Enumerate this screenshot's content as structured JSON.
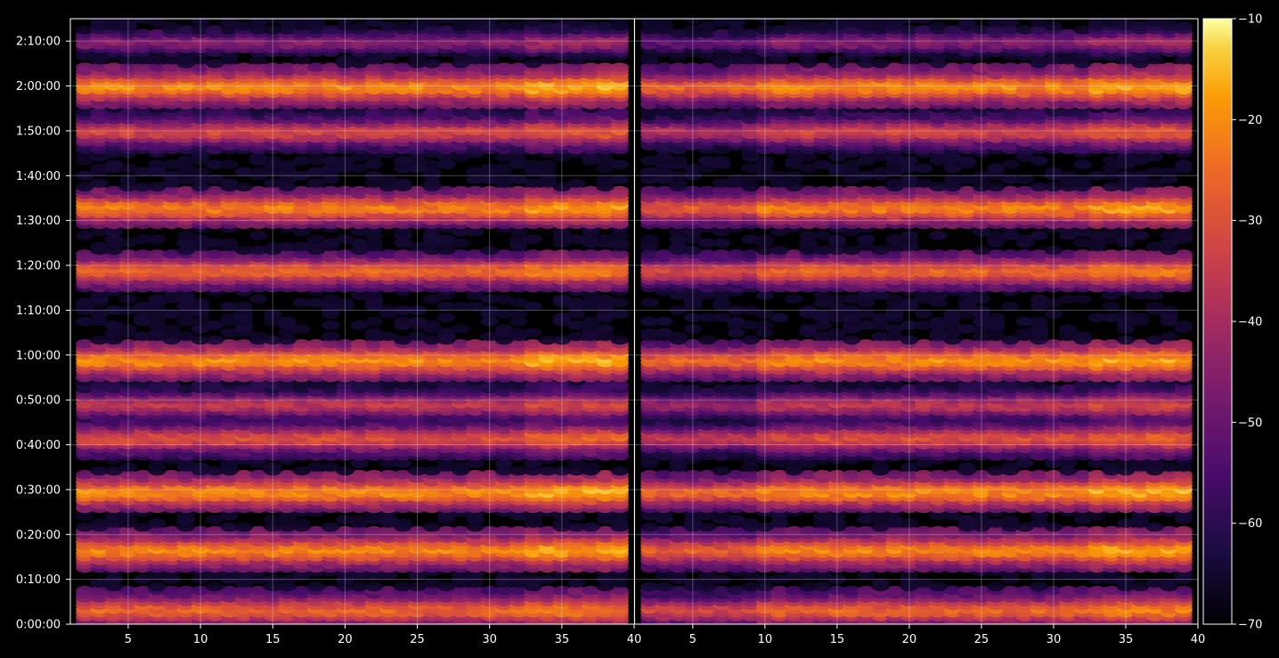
{
  "chart_data": {
    "type": "heatmap",
    "title": "",
    "xlabel": "",
    "ylabel": "",
    "grid": true,
    "panels": [
      {
        "name": "left",
        "xlim": [
          1,
          40
        ],
        "xticks": [
          5,
          10,
          15,
          20,
          25,
          30,
          35,
          40
        ],
        "xtick_labels": [
          "5",
          "10",
          "15",
          "20",
          "25",
          "30",
          "35",
          "40"
        ]
      },
      {
        "name": "right",
        "xlim": [
          1,
          40
        ],
        "xticks": [
          5,
          10,
          15,
          20,
          25,
          30,
          35,
          40
        ],
        "xtick_labels": [
          "5",
          "10",
          "15",
          "20",
          "25",
          "30",
          "35",
          "40"
        ]
      }
    ],
    "x_values": [
      2,
      3,
      4,
      5,
      6,
      7,
      8,
      9,
      10,
      11,
      12,
      13,
      14,
      15,
      16,
      17,
      18,
      19,
      20,
      21,
      22,
      23,
      24,
      25,
      26,
      27,
      28,
      29,
      30,
      31,
      32,
      33,
      34,
      35,
      36,
      37,
      38,
      39
    ],
    "y_unit": "time (h:mm:ss)",
    "ylim_seconds": [
      0,
      8100
    ],
    "yticks_seconds": [
      0,
      600,
      1200,
      1800,
      2400,
      3000,
      3600,
      4200,
      4800,
      5400,
      6000,
      6600,
      7200,
      7800
    ],
    "ytick_labels": [
      "0:00:00",
      "0:10:00",
      "0:20:00",
      "0:30:00",
      "0:40:00",
      "0:50:00",
      "1:00:00",
      "1:10:00",
      "1:20:00",
      "1:30:00",
      "1:40:00",
      "1:50:00",
      "2:00:00",
      "2:10:00"
    ],
    "bands": [
      {
        "t": 7800,
        "level": -45
      },
      {
        "t": 7200,
        "level": -20
      },
      {
        "t": 6600,
        "level": -32
      },
      {
        "t": 5580,
        "level": -22
      },
      {
        "t": 4740,
        "level": -26
      },
      {
        "t": 3540,
        "level": -20
      },
      {
        "t": 2950,
        "level": -36
      },
      {
        "t": 2500,
        "level": -30
      },
      {
        "t": 1780,
        "level": -20
      },
      {
        "t": 1000,
        "level": -21
      },
      {
        "t": 200,
        "level": -26
      }
    ],
    "colorbar": {
      "colormap": "inferno",
      "range": [
        -70,
        -10
      ],
      "ticks": [
        -10,
        -20,
        -30,
        -40,
        -50,
        -60,
        -70
      ],
      "tick_labels": [
        "−10",
        "−20",
        "−30",
        "−40",
        "−50",
        "−60",
        "−70"
      ]
    }
  }
}
